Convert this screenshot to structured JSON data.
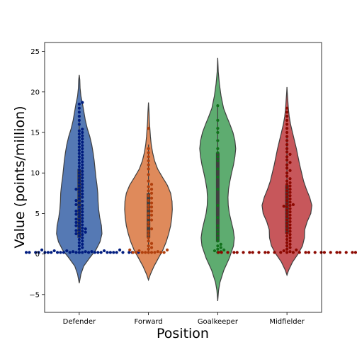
{
  "chart_data": {
    "type": "violin",
    "xlabel": "Position",
    "ylabel": "Value (points/million)",
    "categories": [
      "Defender",
      "Forward",
      "Goalkeeper",
      "Midfielder"
    ],
    "ylim": [
      -7.2,
      26.1
    ],
    "yticks": [
      -5,
      0,
      5,
      10,
      15,
      20,
      25
    ],
    "colors": {
      "violin_fill": [
        "#4c72b0",
        "#dd8452",
        "#55a868",
        "#c44e52"
      ],
      "points": [
        "#001c7f",
        "#b1400d",
        "#12711c",
        "#8c0800"
      ],
      "outline": "#3f3f3f",
      "box": "#3f3f3f"
    },
    "violins": [
      {
        "category": "Defender",
        "range": [
          -3.6,
          22.1
        ],
        "quartiles": [
          2.0,
          5.5,
          10.5
        ],
        "profile": [
          [
            -3.6,
            0
          ],
          [
            -2.5,
            0.06
          ],
          [
            -1.5,
            0.16
          ],
          [
            -0.5,
            0.37
          ],
          [
            0.5,
            0.6
          ],
          [
            1.5,
            0.75
          ],
          [
            2.5,
            0.82
          ],
          [
            3.5,
            0.8
          ],
          [
            4.5,
            0.74
          ],
          [
            5.5,
            0.7
          ],
          [
            6.5,
            0.68
          ],
          [
            7.5,
            0.67
          ],
          [
            8.5,
            0.64
          ],
          [
            9.5,
            0.6
          ],
          [
            10.5,
            0.57
          ],
          [
            11.5,
            0.54
          ],
          [
            12.5,
            0.5
          ],
          [
            13.5,
            0.45
          ],
          [
            14.5,
            0.38
          ],
          [
            15.5,
            0.29
          ],
          [
            16.5,
            0.22
          ],
          [
            17.5,
            0.17
          ],
          [
            18.5,
            0.12
          ],
          [
            19.5,
            0.06
          ],
          [
            20.5,
            0.03
          ],
          [
            21.5,
            0.02
          ],
          [
            22.1,
            0
          ]
        ]
      },
      {
        "category": "Forward",
        "range": [
          -3.2,
          18.7
        ],
        "quartiles": [
          2.0,
          4.5,
          7.5
        ],
        "profile": [
          [
            -3.2,
            0
          ],
          [
            -2.5,
            0.07
          ],
          [
            -1.5,
            0.2
          ],
          [
            -0.5,
            0.36
          ],
          [
            0.5,
            0.52
          ],
          [
            1.5,
            0.64
          ],
          [
            2.5,
            0.73
          ],
          [
            3.5,
            0.8
          ],
          [
            4.5,
            0.84
          ],
          [
            5.5,
            0.86
          ],
          [
            6.5,
            0.85
          ],
          [
            7.5,
            0.8
          ],
          [
            8.5,
            0.68
          ],
          [
            9.5,
            0.5
          ],
          [
            10.5,
            0.33
          ],
          [
            11.5,
            0.22
          ],
          [
            12.5,
            0.15
          ],
          [
            13.5,
            0.1
          ],
          [
            14.5,
            0.07
          ],
          [
            15.5,
            0.05
          ],
          [
            16.5,
            0.03
          ],
          [
            17.5,
            0.02
          ],
          [
            18.7,
            0
          ]
        ]
      },
      {
        "category": "Goalkeeper",
        "range": [
          -5.8,
          24.2
        ],
        "quartiles": [
          1.5,
          4.5,
          12.5
        ],
        "profile": [
          [
            -5.8,
            0
          ],
          [
            -4.5,
            0.03
          ],
          [
            -3.5,
            0.08
          ],
          [
            -2,
            0.22
          ],
          [
            -0.5,
            0.42
          ],
          [
            1,
            0.57
          ],
          [
            2,
            0.6
          ],
          [
            3,
            0.56
          ],
          [
            4,
            0.49
          ],
          [
            5,
            0.42
          ],
          [
            6,
            0.38
          ],
          [
            7,
            0.37
          ],
          [
            8,
            0.39
          ],
          [
            9,
            0.44
          ],
          [
            10,
            0.5
          ],
          [
            11,
            0.57
          ],
          [
            12,
            0.62
          ],
          [
            13,
            0.65
          ],
          [
            14,
            0.62
          ],
          [
            15,
            0.55
          ],
          [
            16,
            0.44
          ],
          [
            17,
            0.32
          ],
          [
            18,
            0.21
          ],
          [
            19.5,
            0.12
          ],
          [
            21,
            0.06
          ],
          [
            22.5,
            0.02
          ],
          [
            24.2,
            0
          ]
        ]
      },
      {
        "category": "Midfielder",
        "range": [
          -2.6,
          20.6
        ],
        "quartiles": [
          2.5,
          5.5,
          8.5
        ],
        "profile": [
          [
            -2.6,
            0
          ],
          [
            -2,
            0.06
          ],
          [
            -1,
            0.2
          ],
          [
            0,
            0.4
          ],
          [
            1,
            0.56
          ],
          [
            2,
            0.63
          ],
          [
            3,
            0.64
          ],
          [
            4,
            0.73
          ],
          [
            5,
            0.86
          ],
          [
            6,
            0.9
          ],
          [
            7,
            0.82
          ],
          [
            8,
            0.7
          ],
          [
            9,
            0.6
          ],
          [
            10,
            0.53
          ],
          [
            11,
            0.46
          ],
          [
            12,
            0.4
          ],
          [
            13,
            0.34
          ],
          [
            14,
            0.27
          ],
          [
            15,
            0.2
          ],
          [
            16,
            0.13
          ],
          [
            17,
            0.08
          ],
          [
            18,
            0.05
          ],
          [
            19,
            0.03
          ],
          [
            20,
            0.01
          ],
          [
            20.6,
            0
          ]
        ]
      }
    ],
    "points": [
      {
        "category": "Defender",
        "values": [
          0.2,
          0.2,
          0.2,
          0.2,
          0.2,
          0.2,
          0.2,
          0.2,
          0.2,
          0.2,
          0.2,
          0.2,
          0.2,
          0.2,
          0.2,
          0.2,
          0.2,
          0.2,
          0.2,
          0.2,
          0.2,
          0.2,
          0.2,
          0.2,
          0.2,
          0.2,
          0.3,
          0.3,
          0.3,
          0.4,
          0.4,
          0.4,
          0.5,
          0.5,
          0.6,
          0.8,
          1.0,
          1.2,
          1.4,
          1.6,
          1.8,
          2.0,
          2.2,
          2.4,
          2.5,
          2.6,
          2.7,
          2.8,
          2.9,
          3.0,
          3.1,
          3.2,
          3.4,
          3.5,
          3.6,
          3.8,
          3.9,
          4.0,
          4.2,
          4.3,
          4.4,
          4.6,
          4.8,
          4.9,
          5.0,
          5.2,
          5.3,
          5.4,
          5.6,
          5.8,
          6.0,
          6.1,
          6.3,
          6.5,
          6.6,
          6.8,
          7.0,
          7.2,
          7.4,
          7.6,
          7.8,
          8.0,
          8.0,
          8.2,
          8.4,
          8.6,
          8.8,
          9.0,
          9.2,
          9.4,
          9.6,
          9.8,
          10.0,
          10.2,
          10.4,
          10.6,
          10.8,
          11.0,
          11.2,
          11.4,
          11.6,
          11.8,
          12.0,
          12.2,
          12.4,
          12.6,
          12.8,
          13.0,
          13.2,
          13.4,
          13.6,
          13.8,
          14.0,
          14.2,
          14.4,
          14.6,
          14.8,
          15.0,
          15.2,
          15.4,
          16.0,
          16.5,
          17.0,
          17.5,
          18.0,
          18.5,
          18.7
        ]
      },
      {
        "category": "Forward",
        "values": [
          0.2,
          0.2,
          0.2,
          0.2,
          0.2,
          0.2,
          0.2,
          0.2,
          0.2,
          0.3,
          0.4,
          0.5,
          0.5,
          0.6,
          0.8,
          1.0,
          1.3,
          1.6,
          2.0,
          2.4,
          2.8,
          3.1,
          3.5,
          3.9,
          4.2,
          4.5,
          4.8,
          5.0,
          5.3,
          5.6,
          5.8,
          6.0,
          6.3,
          6.6,
          6.9,
          7.2,
          7.5,
          7.8,
          8.0,
          8.3,
          8.6,
          9.0,
          9.8,
          10.5,
          11.0,
          11.5,
          12.0,
          12.5,
          13.0,
          15.5
        ]
      },
      {
        "category": "Goalkeeper",
        "values": [
          0.2,
          0.3,
          0.4,
          0.5,
          0.6,
          0.8,
          1.0,
          1.2,
          1.6,
          2.0,
          2.5,
          3.0,
          3.5,
          4.5,
          6.0,
          8.0,
          9.5,
          10.5,
          11.5,
          12.0,
          12.5,
          13.0,
          14.0,
          15.0,
          15.5,
          16.5,
          18.3
        ]
      },
      {
        "category": "Midfielder",
        "values": [
          0.2,
          0.2,
          0.2,
          0.2,
          0.2,
          0.2,
          0.2,
          0.2,
          0.2,
          0.2,
          0.2,
          0.2,
          0.2,
          0.2,
          0.2,
          0.2,
          0.2,
          0.2,
          0.2,
          0.2,
          0.2,
          0.2,
          0.2,
          0.2,
          0.2,
          0.2,
          0.2,
          0.2,
          0.3,
          0.4,
          0.5,
          0.6,
          0.8,
          1.0,
          1.2,
          1.4,
          1.6,
          1.8,
          2.0,
          2.2,
          2.4,
          2.6,
          2.8,
          3.0,
          3.2,
          3.4,
          3.6,
          3.8,
          4.0,
          4.2,
          4.4,
          4.6,
          4.8,
          5.0,
          5.2,
          5.4,
          5.6,
          5.8,
          5.9,
          6.0,
          6.1,
          6.2,
          6.4,
          6.6,
          6.8,
          7.0,
          7.2,
          7.4,
          7.6,
          7.8,
          8.0,
          8.2,
          8.4,
          8.6,
          8.8,
          9.0,
          9.3,
          9.6,
          10.0,
          10.3,
          10.6,
          11.0,
          11.3,
          11.6,
          12.0,
          12.3,
          12.6,
          13.0,
          13.5,
          14.0,
          14.5,
          15.0,
          15.5,
          16.0,
          16.5,
          17.0,
          17.5,
          18.0
        ]
      }
    ]
  }
}
